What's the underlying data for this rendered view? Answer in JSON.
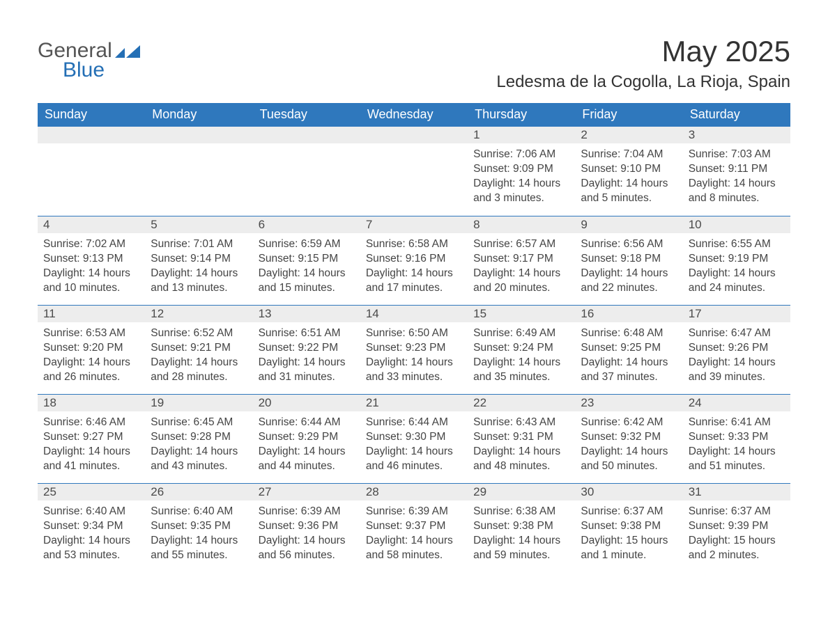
{
  "logo": {
    "word1": "General",
    "word2": "Blue",
    "accent_color": "#246fb5",
    "text_color_general": "#555555",
    "text_color_blue": "#246fb5"
  },
  "header": {
    "month_title": "May 2025",
    "location": "Ledesma de la Cogolla, La Rioja, Spain"
  },
  "colors": {
    "header_bg": "#2f78bd",
    "header_text": "#ffffff",
    "daynum_bg": "#ededed",
    "daynum_text": "#4a4a4a",
    "body_text": "#444444",
    "rule": "#2f78bd",
    "page_bg": "#ffffff"
  },
  "calendar": {
    "weekday_labels": [
      "Sunday",
      "Monday",
      "Tuesday",
      "Wednesday",
      "Thursday",
      "Friday",
      "Saturday"
    ],
    "weeks": [
      [
        {
          "day": "",
          "sunrise": "",
          "sunset": "",
          "daylight": ""
        },
        {
          "day": "",
          "sunrise": "",
          "sunset": "",
          "daylight": ""
        },
        {
          "day": "",
          "sunrise": "",
          "sunset": "",
          "daylight": ""
        },
        {
          "day": "",
          "sunrise": "",
          "sunset": "",
          "daylight": ""
        },
        {
          "day": "1",
          "sunrise": "Sunrise: 7:06 AM",
          "sunset": "Sunset: 9:09 PM",
          "daylight": "Daylight: 14 hours and 3 minutes."
        },
        {
          "day": "2",
          "sunrise": "Sunrise: 7:04 AM",
          "sunset": "Sunset: 9:10 PM",
          "daylight": "Daylight: 14 hours and 5 minutes."
        },
        {
          "day": "3",
          "sunrise": "Sunrise: 7:03 AM",
          "sunset": "Sunset: 9:11 PM",
          "daylight": "Daylight: 14 hours and 8 minutes."
        }
      ],
      [
        {
          "day": "4",
          "sunrise": "Sunrise: 7:02 AM",
          "sunset": "Sunset: 9:13 PM",
          "daylight": "Daylight: 14 hours and 10 minutes."
        },
        {
          "day": "5",
          "sunrise": "Sunrise: 7:01 AM",
          "sunset": "Sunset: 9:14 PM",
          "daylight": "Daylight: 14 hours and 13 minutes."
        },
        {
          "day": "6",
          "sunrise": "Sunrise: 6:59 AM",
          "sunset": "Sunset: 9:15 PM",
          "daylight": "Daylight: 14 hours and 15 minutes."
        },
        {
          "day": "7",
          "sunrise": "Sunrise: 6:58 AM",
          "sunset": "Sunset: 9:16 PM",
          "daylight": "Daylight: 14 hours and 17 minutes."
        },
        {
          "day": "8",
          "sunrise": "Sunrise: 6:57 AM",
          "sunset": "Sunset: 9:17 PM",
          "daylight": "Daylight: 14 hours and 20 minutes."
        },
        {
          "day": "9",
          "sunrise": "Sunrise: 6:56 AM",
          "sunset": "Sunset: 9:18 PM",
          "daylight": "Daylight: 14 hours and 22 minutes."
        },
        {
          "day": "10",
          "sunrise": "Sunrise: 6:55 AM",
          "sunset": "Sunset: 9:19 PM",
          "daylight": "Daylight: 14 hours and 24 minutes."
        }
      ],
      [
        {
          "day": "11",
          "sunrise": "Sunrise: 6:53 AM",
          "sunset": "Sunset: 9:20 PM",
          "daylight": "Daylight: 14 hours and 26 minutes."
        },
        {
          "day": "12",
          "sunrise": "Sunrise: 6:52 AM",
          "sunset": "Sunset: 9:21 PM",
          "daylight": "Daylight: 14 hours and 28 minutes."
        },
        {
          "day": "13",
          "sunrise": "Sunrise: 6:51 AM",
          "sunset": "Sunset: 9:22 PM",
          "daylight": "Daylight: 14 hours and 31 minutes."
        },
        {
          "day": "14",
          "sunrise": "Sunrise: 6:50 AM",
          "sunset": "Sunset: 9:23 PM",
          "daylight": "Daylight: 14 hours and 33 minutes."
        },
        {
          "day": "15",
          "sunrise": "Sunrise: 6:49 AM",
          "sunset": "Sunset: 9:24 PM",
          "daylight": "Daylight: 14 hours and 35 minutes."
        },
        {
          "day": "16",
          "sunrise": "Sunrise: 6:48 AM",
          "sunset": "Sunset: 9:25 PM",
          "daylight": "Daylight: 14 hours and 37 minutes."
        },
        {
          "day": "17",
          "sunrise": "Sunrise: 6:47 AM",
          "sunset": "Sunset: 9:26 PM",
          "daylight": "Daylight: 14 hours and 39 minutes."
        }
      ],
      [
        {
          "day": "18",
          "sunrise": "Sunrise: 6:46 AM",
          "sunset": "Sunset: 9:27 PM",
          "daylight": "Daylight: 14 hours and 41 minutes."
        },
        {
          "day": "19",
          "sunrise": "Sunrise: 6:45 AM",
          "sunset": "Sunset: 9:28 PM",
          "daylight": "Daylight: 14 hours and 43 minutes."
        },
        {
          "day": "20",
          "sunrise": "Sunrise: 6:44 AM",
          "sunset": "Sunset: 9:29 PM",
          "daylight": "Daylight: 14 hours and 44 minutes."
        },
        {
          "day": "21",
          "sunrise": "Sunrise: 6:44 AM",
          "sunset": "Sunset: 9:30 PM",
          "daylight": "Daylight: 14 hours and 46 minutes."
        },
        {
          "day": "22",
          "sunrise": "Sunrise: 6:43 AM",
          "sunset": "Sunset: 9:31 PM",
          "daylight": "Daylight: 14 hours and 48 minutes."
        },
        {
          "day": "23",
          "sunrise": "Sunrise: 6:42 AM",
          "sunset": "Sunset: 9:32 PM",
          "daylight": "Daylight: 14 hours and 50 minutes."
        },
        {
          "day": "24",
          "sunrise": "Sunrise: 6:41 AM",
          "sunset": "Sunset: 9:33 PM",
          "daylight": "Daylight: 14 hours and 51 minutes."
        }
      ],
      [
        {
          "day": "25",
          "sunrise": "Sunrise: 6:40 AM",
          "sunset": "Sunset: 9:34 PM",
          "daylight": "Daylight: 14 hours and 53 minutes."
        },
        {
          "day": "26",
          "sunrise": "Sunrise: 6:40 AM",
          "sunset": "Sunset: 9:35 PM",
          "daylight": "Daylight: 14 hours and 55 minutes."
        },
        {
          "day": "27",
          "sunrise": "Sunrise: 6:39 AM",
          "sunset": "Sunset: 9:36 PM",
          "daylight": "Daylight: 14 hours and 56 minutes."
        },
        {
          "day": "28",
          "sunrise": "Sunrise: 6:39 AM",
          "sunset": "Sunset: 9:37 PM",
          "daylight": "Daylight: 14 hours and 58 minutes."
        },
        {
          "day": "29",
          "sunrise": "Sunrise: 6:38 AM",
          "sunset": "Sunset: 9:38 PM",
          "daylight": "Daylight: 14 hours and 59 minutes."
        },
        {
          "day": "30",
          "sunrise": "Sunrise: 6:37 AM",
          "sunset": "Sunset: 9:38 PM",
          "daylight": "Daylight: 15 hours and 1 minute."
        },
        {
          "day": "31",
          "sunrise": "Sunrise: 6:37 AM",
          "sunset": "Sunset: 9:39 PM",
          "daylight": "Daylight: 15 hours and 2 minutes."
        }
      ]
    ]
  }
}
